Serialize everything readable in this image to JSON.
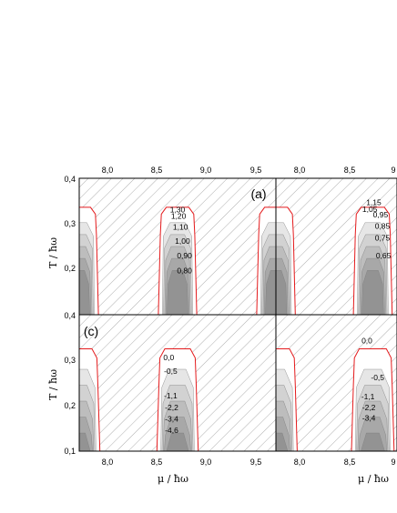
{
  "chart_data": [
    {
      "type": "area",
      "panel_label": "(a)",
      "ylabel": "T / ħω",
      "xlim": [
        7.75,
        9.75
      ],
      "ylim": [
        0.0,
        0.4
      ],
      "x_ticks": [
        "8,0",
        "8,5",
        "9,0",
        "9,5"
      ],
      "y_ticks": [
        "0,4",
        "0,3",
        "0,2"
      ],
      "contour_labels": [
        {
          "text": "1,30",
          "x": 8.75,
          "y": 0.3
        },
        {
          "text": "1,20",
          "x": 8.76,
          "y": 0.281
        },
        {
          "text": "1,10",
          "x": 8.78,
          "y": 0.25
        },
        {
          "text": "1,00",
          "x": 8.8,
          "y": 0.208
        },
        {
          "text": "0,90",
          "x": 8.82,
          "y": 0.165
        },
        {
          "text": "0,80",
          "x": 8.82,
          "y": 0.122
        }
      ]
    },
    {
      "type": "area",
      "panel_label": "",
      "xlim": [
        7.75,
        9.0
      ],
      "ylim": [
        0.0,
        0.4
      ],
      "x_ticks": [
        "8,0",
        "8,5",
        "9"
      ],
      "contour_labels": [
        {
          "text": "1,15",
          "x": 8.76,
          "y": 0.322
        },
        {
          "text": "1,05",
          "x": 8.72,
          "y": 0.302
        },
        {
          "text": "0,95",
          "x": 8.83,
          "y": 0.285
        },
        {
          "text": "0,85",
          "x": 8.85,
          "y": 0.252
        },
        {
          "text": "0,75",
          "x": 8.85,
          "y": 0.218
        },
        {
          "text": "0,65",
          "x": 8.86,
          "y": 0.165
        }
      ]
    },
    {
      "type": "area",
      "panel_label": "(c)",
      "ylabel": "T / ħω",
      "xlabel": "μ / ħω",
      "xlim": [
        7.75,
        9.75
      ],
      "ylim": [
        0.1,
        0.4
      ],
      "x_ticks": [
        "8,0",
        "8,5",
        "9,0",
        "9,5"
      ],
      "y_ticks": [
        "0,4",
        "0,3",
        "0,2",
        "0,1"
      ],
      "contour_labels": [
        {
          "text": "0,0",
          "x": 8.66,
          "y": 0.3
        },
        {
          "text": "-0,5",
          "x": 8.68,
          "y": 0.27
        },
        {
          "text": "-1,1",
          "x": 8.68,
          "y": 0.216
        },
        {
          "text": "-2,2",
          "x": 8.69,
          "y": 0.19
        },
        {
          "text": "-3,4",
          "x": 8.69,
          "y": 0.165
        },
        {
          "text": "-4,6",
          "x": 8.69,
          "y": 0.14
        }
      ]
    },
    {
      "type": "area",
      "panel_label": "",
      "xlabel": "μ / ħω",
      "xlim": [
        7.75,
        9.0
      ],
      "ylim": [
        0.1,
        0.4
      ],
      "x_ticks": [
        "8,0",
        "8,5",
        "9"
      ],
      "contour_labels": [
        {
          "text": "0,0",
          "x": 8.69,
          "y": 0.337
        },
        {
          "text": "-0,5",
          "x": 8.8,
          "y": 0.256
        },
        {
          "text": "-1,1",
          "x": 8.7,
          "y": 0.214
        },
        {
          "text": "-2,2",
          "x": 8.71,
          "y": 0.19
        },
        {
          "text": "-3,4",
          "x": 8.71,
          "y": 0.167
        }
      ]
    }
  ],
  "colors": {
    "boundary": "#e41a1c",
    "hatch": "#9a9a9a",
    "shade_levels": [
      "#e6e6e6",
      "#d2d2d2",
      "#bdbdbd",
      "#a8a8a8",
      "#939393"
    ]
  }
}
